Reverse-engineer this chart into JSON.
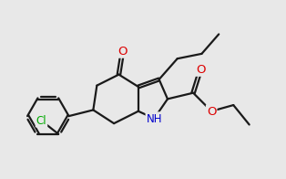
{
  "background_color": "#e8e8e8",
  "bond_color": "#1a1a1a",
  "bond_width": 1.6,
  "atom_colors": {
    "O": "#dd0000",
    "N": "#0000cc",
    "Cl": "#00aa00",
    "C": "#1a1a1a"
  },
  "font_size": 8.5
}
